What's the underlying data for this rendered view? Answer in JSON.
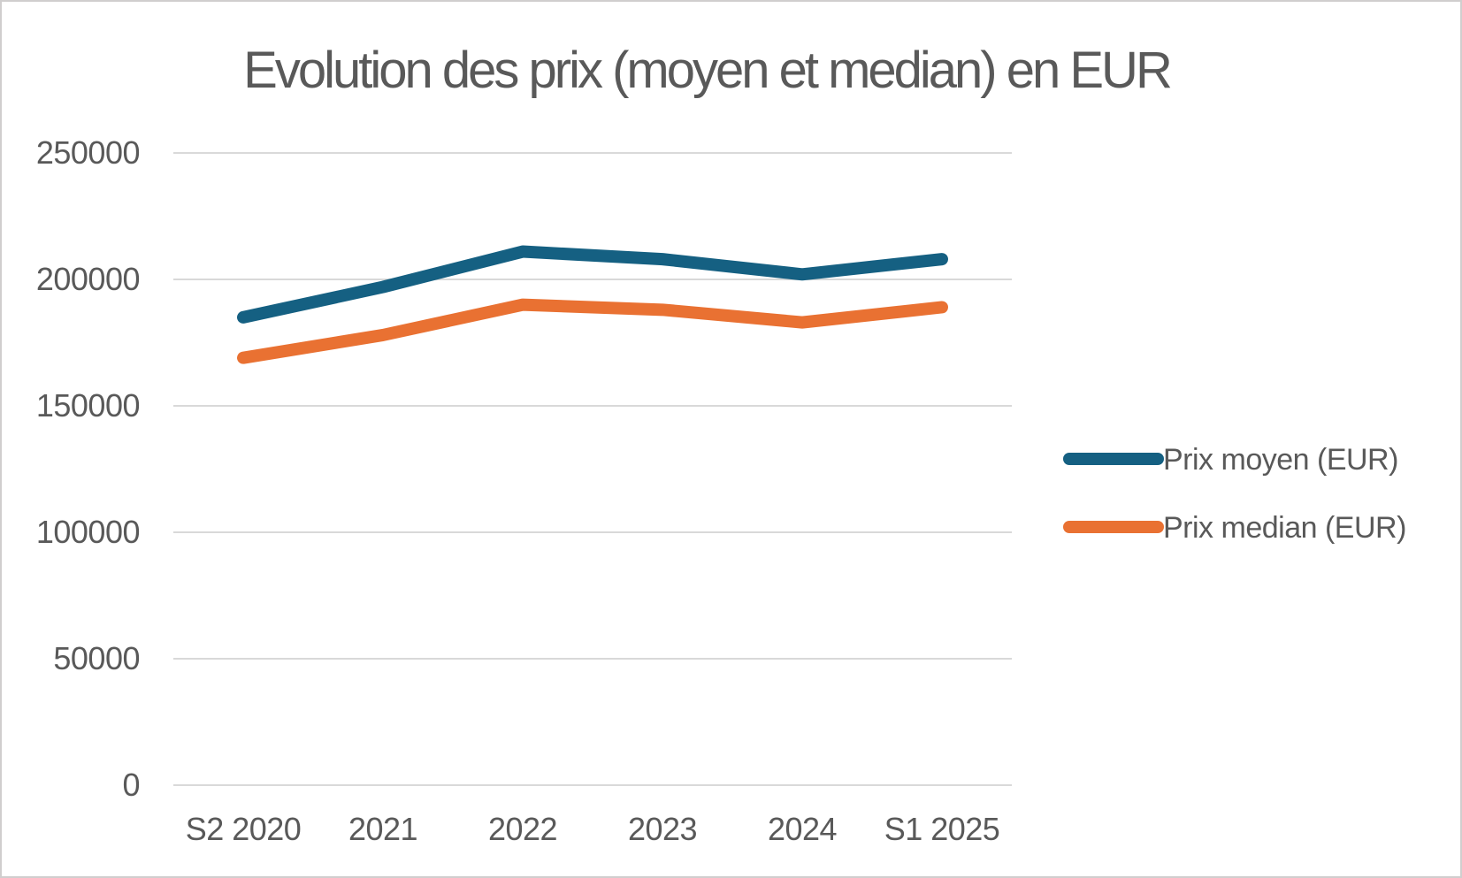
{
  "title": "Evolution des prix (moyen et median) en EUR",
  "colors": {
    "accent_blue": "#156082",
    "accent_orange": "#E97132",
    "gridline": "#D9D9D9",
    "axis_text": "#595959",
    "title_text": "#595959",
    "frame_border": "#D0CECE",
    "background": "#FFFFFF"
  },
  "chart_data": {
    "type": "line",
    "title": "Evolution des prix (moyen et median) en EUR",
    "categories": [
      "S2 2020",
      "2021",
      "2022",
      "2023",
      "2024",
      "S1 2025"
    ],
    "series": [
      {
        "name": "Prix moyen (EUR)",
        "color": "#156082",
        "values": [
          185000,
          197000,
          211000,
          208000,
          202000,
          208000
        ]
      },
      {
        "name": "Prix median (EUR)",
        "color": "#E97132",
        "values": [
          169000,
          178000,
          190000,
          188000,
          183000,
          189000
        ]
      }
    ],
    "xlabel": "",
    "ylabel": "",
    "ylim": [
      0,
      250000
    ],
    "y_ticks": [
      0,
      50000,
      100000,
      150000,
      200000,
      250000
    ],
    "grid": true,
    "legend_position": "right"
  }
}
